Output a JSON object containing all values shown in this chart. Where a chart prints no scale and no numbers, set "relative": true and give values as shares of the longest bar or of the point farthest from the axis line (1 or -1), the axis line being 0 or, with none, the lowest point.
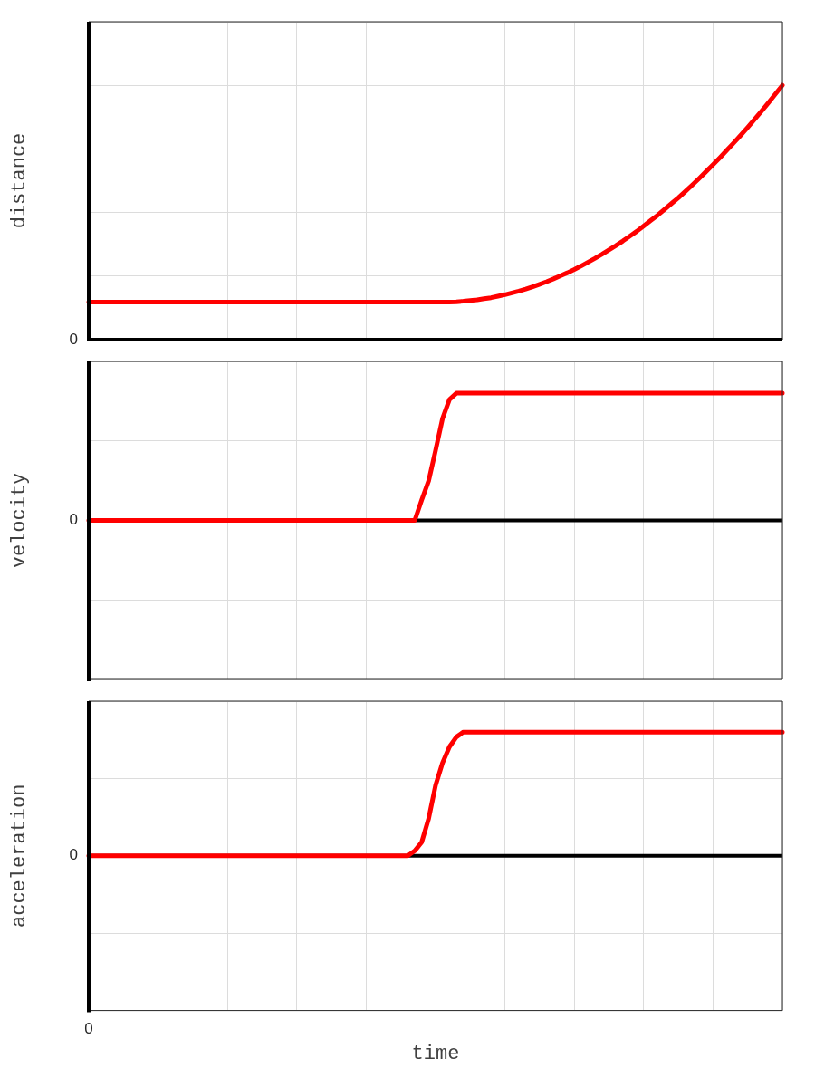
{
  "chart_data": [
    {
      "type": "line",
      "ylabel": "distance",
      "relative": true,
      "tick_labels": false,
      "grid": true,
      "legend": false,
      "marker": "none",
      "line_style": "solid",
      "annotations": [
        "0"
      ],
      "categories": [
        null,
        null,
        null,
        null,
        null,
        null,
        null,
        null,
        null,
        null,
        null,
        null,
        null,
        null,
        null,
        null,
        null,
        null,
        null,
        null,
        null,
        null,
        null,
        null,
        null,
        null,
        null,
        null,
        null,
        null,
        null,
        null,
        null,
        null,
        null,
        null,
        null,
        null,
        null,
        null,
        null,
        null,
        null,
        null,
        null,
        null,
        null,
        null,
        null,
        null,
        null,
        null,
        null,
        null,
        null,
        null,
        null,
        null,
        null,
        null,
        null,
        null,
        null,
        null,
        null,
        null,
        null,
        null,
        null,
        null,
        null,
        null,
        null,
        null,
        null,
        null,
        null,
        null,
        null,
        null,
        null,
        null,
        null,
        null,
        null,
        null,
        null,
        null,
        null,
        null,
        null,
        null,
        null,
        null,
        null,
        null,
        null,
        null,
        null,
        null,
        null
      ],
      "series": [
        {
          "color": "#ff0000",
          "values": [
            0.148,
            0.148,
            0.148,
            0.148,
            0.148,
            0.148,
            0.148,
            0.148,
            0.148,
            0.148,
            0.148,
            0.148,
            0.148,
            0.148,
            0.148,
            0.148,
            0.148,
            0.148,
            0.148,
            0.148,
            0.148,
            0.148,
            0.148,
            0.148,
            0.148,
            0.148,
            0.148,
            0.148,
            0.148,
            0.148,
            0.148,
            0.148,
            0.148,
            0.148,
            0.148,
            0.148,
            0.148,
            0.148,
            0.148,
            0.148,
            0.148,
            0.148,
            0.148,
            0.148,
            0.148,
            0.148,
            0.148,
            0.148,
            0.148,
            0.148,
            0.148,
            0.148,
            0.148,
            0.149,
            0.151,
            0.154,
            0.157,
            0.161,
            0.165,
            0.171,
            0.177,
            0.184,
            0.191,
            0.199,
            0.208,
            0.218,
            0.228,
            0.239,
            0.251,
            0.263,
            0.276,
            0.29,
            0.305,
            0.32,
            0.336,
            0.353,
            0.37,
            0.388,
            0.407,
            0.426,
            0.447,
            0.468,
            0.489,
            0.512,
            0.535,
            0.558,
            0.583,
            0.608,
            0.634,
            0.661,
            0.688,
            0.716,
            0.745,
            0.774,
            0.804,
            0.835,
            0.867,
            0.899,
            0.932,
            0.966,
            1
          ]
        }
      ]
    },
    {
      "type": "line",
      "ylabel": "velocity",
      "relative": true,
      "tick_labels": false,
      "grid": true,
      "legend": false,
      "marker": "none",
      "line_style": "solid",
      "annotations": [
        "0"
      ],
      "ref_lines": [
        {
          "axis": "y",
          "value": 0,
          "color": "#000000"
        }
      ],
      "categories": [
        null,
        null,
        null,
        null,
        null,
        null,
        null,
        null,
        null,
        null,
        null,
        null,
        null,
        null,
        null,
        null,
        null,
        null,
        null,
        null,
        null,
        null,
        null,
        null,
        null,
        null,
        null,
        null,
        null,
        null,
        null,
        null,
        null,
        null,
        null,
        null,
        null,
        null,
        null,
        null,
        null,
        null,
        null,
        null,
        null,
        null,
        null,
        null,
        null,
        null,
        null,
        null,
        null,
        null,
        null,
        null,
        null,
        null,
        null,
        null,
        null,
        null,
        null,
        null,
        null,
        null,
        null,
        null,
        null,
        null,
        null,
        null,
        null,
        null,
        null,
        null,
        null,
        null,
        null,
        null,
        null,
        null,
        null,
        null,
        null,
        null,
        null,
        null,
        null,
        null,
        null,
        null,
        null,
        null,
        null,
        null,
        null,
        null,
        null,
        null,
        null
      ],
      "series": [
        {
          "color": "#ff0000",
          "values": [
            0,
            0,
            0,
            0,
            0,
            0,
            0,
            0,
            0,
            0,
            0,
            0,
            0,
            0,
            0,
            0,
            0,
            0,
            0,
            0,
            0,
            0,
            0,
            0,
            0,
            0,
            0,
            0,
            0,
            0,
            0,
            0,
            0,
            0,
            0,
            0,
            0,
            0,
            0,
            0,
            0,
            0,
            0,
            0,
            0,
            0,
            0,
            0,
            0.16,
            0.31,
            0.55,
            0.8,
            0.95,
            1,
            1,
            1,
            1,
            1,
            1,
            1,
            1,
            1,
            1,
            1,
            1,
            1,
            1,
            1,
            1,
            1,
            1,
            1,
            1,
            1,
            1,
            1,
            1,
            1,
            1,
            1,
            1,
            1,
            1,
            1,
            1,
            1,
            1,
            1,
            1,
            1,
            1,
            1,
            1,
            1,
            1,
            1,
            1,
            1,
            1,
            1,
            1
          ]
        }
      ]
    },
    {
      "type": "line",
      "ylabel": "acceleration",
      "xlabel": "time",
      "relative": true,
      "tick_labels": false,
      "grid": true,
      "legend": false,
      "marker": "none",
      "line_style": "solid",
      "annotations": [
        "0",
        "0"
      ],
      "ref_lines": [
        {
          "axis": "y",
          "value": 0,
          "color": "#000000"
        }
      ],
      "categories": [
        null,
        null,
        null,
        null,
        null,
        null,
        null,
        null,
        null,
        null,
        null,
        null,
        null,
        null,
        null,
        null,
        null,
        null,
        null,
        null,
        null,
        null,
        null,
        null,
        null,
        null,
        null,
        null,
        null,
        null,
        null,
        null,
        null,
        null,
        null,
        null,
        null,
        null,
        null,
        null,
        null,
        null,
        null,
        null,
        null,
        null,
        null,
        null,
        null,
        null,
        null,
        null,
        null,
        null,
        null,
        null,
        null,
        null,
        null,
        null,
        null,
        null,
        null,
        null,
        null,
        null,
        null,
        null,
        null,
        null,
        null,
        null,
        null,
        null,
        null,
        null,
        null,
        null,
        null,
        null,
        null,
        null,
        null,
        null,
        null,
        null,
        null,
        null,
        null,
        null,
        null,
        null,
        null,
        null,
        null,
        null,
        null,
        null,
        null,
        null,
        null
      ],
      "series": [
        {
          "color": "#ff0000",
          "values": [
            0,
            0,
            0,
            0,
            0,
            0,
            0,
            0,
            0,
            0,
            0,
            0,
            0,
            0,
            0,
            0,
            0,
            0,
            0,
            0,
            0,
            0,
            0,
            0,
            0,
            0,
            0,
            0,
            0,
            0,
            0,
            0,
            0,
            0,
            0,
            0,
            0,
            0,
            0,
            0,
            0,
            0,
            0,
            0,
            0,
            0,
            0,
            0.04,
            0.11,
            0.3,
            0.57,
            0.75,
            0.88,
            0.96,
            1,
            1,
            1,
            1,
            1,
            1,
            1,
            1,
            1,
            1,
            1,
            1,
            1,
            1,
            1,
            1,
            1,
            1,
            1,
            1,
            1,
            1,
            1,
            1,
            1,
            1,
            1,
            1,
            1,
            1,
            1,
            1,
            1,
            1,
            1,
            1,
            1,
            1,
            1,
            1,
            1,
            1,
            1,
            1,
            1,
            1,
            1
          ]
        }
      ]
    }
  ]
}
